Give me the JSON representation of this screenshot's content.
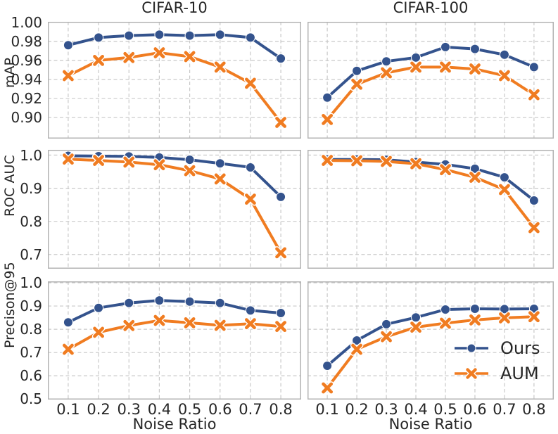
{
  "figure": {
    "titles": [
      "CIFAR-10",
      "CIFAR-100"
    ],
    "row_labels": [
      "mAP",
      "ROC AUC",
      "Precison@95"
    ],
    "xlabel": "Noise Ratio",
    "x_tick_labels": [
      "0.1",
      "0.2",
      "0.3",
      "0.4",
      "0.5",
      "0.6",
      "0.7",
      "0.8"
    ],
    "legend": {
      "items": [
        {
          "label": "Ours",
          "marker": "circle-marker-icon",
          "color": "#34538D"
        },
        {
          "label": "AUM",
          "marker": "x-marker-icon",
          "color": "#F07C21"
        }
      ]
    },
    "colors": {
      "ours_blue": "#34538D",
      "aum_orange": "#F07C21",
      "gridline": "#C9C9C9",
      "plot_border": "#B3B3B3",
      "text": "#262626"
    }
  },
  "chart_data": [
    {
      "type": "line",
      "dataset": "CIFAR-10",
      "metric": "mAP",
      "x": [
        0.1,
        0.2,
        0.3,
        0.4,
        0.5,
        0.6,
        0.7,
        0.8
      ],
      "xlim": [
        0.033,
        0.867
      ],
      "ylim": [
        0.878,
        1.0005
      ],
      "yticks": [
        1.0,
        0.98,
        0.96,
        0.94,
        0.92,
        0.9
      ],
      "ytick_labels": [
        "1.00",
        "0.98",
        "0.96",
        "0.94",
        "0.92",
        "0.90"
      ],
      "grid": true,
      "legend": false,
      "series": [
        {
          "name": "Ours",
          "color": "#34538D",
          "marker": "circle",
          "values": [
            0.976,
            0.984,
            0.986,
            0.987,
            0.986,
            0.987,
            0.984,
            0.962
          ]
        },
        {
          "name": "AUM",
          "color": "#F07C21",
          "marker": "x",
          "values": [
            0.944,
            0.96,
            0.963,
            0.968,
            0.964,
            0.953,
            0.936,
            0.895
          ]
        }
      ]
    },
    {
      "type": "line",
      "dataset": "CIFAR-100",
      "metric": "mAP",
      "x": [
        0.1,
        0.2,
        0.3,
        0.4,
        0.5,
        0.6,
        0.7,
        0.8
      ],
      "xlim": [
        0.033,
        0.867
      ],
      "ylim": [
        0.878,
        1.0005
      ],
      "yticks": [
        1.0,
        0.98,
        0.96,
        0.94,
        0.92,
        0.9
      ],
      "ytick_labels": [],
      "grid": true,
      "legend": false,
      "series": [
        {
          "name": "Ours",
          "color": "#34538D",
          "marker": "circle",
          "values": [
            0.921,
            0.949,
            0.959,
            0.963,
            0.974,
            0.972,
            0.966,
            0.953
          ]
        },
        {
          "name": "AUM",
          "color": "#F07C21",
          "marker": "x",
          "values": [
            0.898,
            0.935,
            0.947,
            0.953,
            0.953,
            0.951,
            0.944,
            0.924
          ]
        }
      ]
    },
    {
      "type": "line",
      "dataset": "CIFAR-10",
      "metric": "ROC AUC",
      "x": [
        0.1,
        0.2,
        0.3,
        0.4,
        0.5,
        0.6,
        0.7,
        0.8
      ],
      "xlim": [
        0.033,
        0.867
      ],
      "ylim": [
        0.657,
        1.016
      ],
      "yticks": [
        1.0,
        0.9,
        0.8,
        0.7
      ],
      "ytick_labels": [
        "1.0",
        "0.9",
        "0.8",
        "0.7"
      ],
      "grid": true,
      "legend": false,
      "series": [
        {
          "name": "Ours",
          "color": "#34538D",
          "marker": "circle",
          "values": [
            0.998,
            0.997,
            0.996,
            0.993,
            0.986,
            0.975,
            0.963,
            0.874
          ]
        },
        {
          "name": "AUM",
          "color": "#F07C21",
          "marker": "x",
          "values": [
            0.988,
            0.984,
            0.979,
            0.971,
            0.953,
            0.928,
            0.867,
            0.705
          ]
        }
      ]
    },
    {
      "type": "line",
      "dataset": "CIFAR-100",
      "metric": "ROC AUC",
      "x": [
        0.1,
        0.2,
        0.3,
        0.4,
        0.5,
        0.6,
        0.7,
        0.8
      ],
      "xlim": [
        0.033,
        0.867
      ],
      "ylim": [
        0.657,
        1.016
      ],
      "yticks": [
        1.0,
        0.9,
        0.8,
        0.7
      ],
      "ytick_labels": [],
      "grid": true,
      "legend": false,
      "series": [
        {
          "name": "Ours",
          "color": "#34538D",
          "marker": "circle",
          "values": [
            0.987,
            0.987,
            0.986,
            0.979,
            0.972,
            0.959,
            0.933,
            0.863
          ]
        },
        {
          "name": "AUM",
          "color": "#F07C21",
          "marker": "x",
          "values": [
            0.984,
            0.983,
            0.981,
            0.974,
            0.956,
            0.933,
            0.896,
            0.781
          ]
        }
      ]
    },
    {
      "type": "line",
      "dataset": "CIFAR-10",
      "metric": "Precison@95",
      "x": [
        0.1,
        0.2,
        0.3,
        0.4,
        0.5,
        0.6,
        0.7,
        0.8
      ],
      "xlim": [
        0.033,
        0.867
      ],
      "ylim": [
        0.498,
        1.006
      ],
      "yticks": [
        1.0,
        0.9,
        0.8,
        0.7,
        0.6,
        0.5
      ],
      "ytick_labels": [
        "1.0",
        "0.9",
        "0.8",
        "0.7",
        "0.6",
        "0.5"
      ],
      "grid": true,
      "legend": false,
      "series": [
        {
          "name": "Ours",
          "color": "#34538D",
          "marker": "circle",
          "values": [
            0.83,
            0.892,
            0.913,
            0.924,
            0.919,
            0.913,
            0.881,
            0.87
          ]
        },
        {
          "name": "AUM",
          "color": "#F07C21",
          "marker": "x",
          "values": [
            0.714,
            0.787,
            0.816,
            0.838,
            0.828,
            0.817,
            0.824,
            0.812
          ]
        }
      ]
    },
    {
      "type": "line",
      "dataset": "CIFAR-100",
      "metric": "Precison@95",
      "x": [
        0.1,
        0.2,
        0.3,
        0.4,
        0.5,
        0.6,
        0.7,
        0.8
      ],
      "xlim": [
        0.033,
        0.867
      ],
      "ylim": [
        0.498,
        1.006
      ],
      "yticks": [
        1.0,
        0.9,
        0.8,
        0.7,
        0.6,
        0.5
      ],
      "ytick_labels": [],
      "grid": true,
      "legend": true,
      "legend_position": "lower right",
      "series": [
        {
          "name": "Ours",
          "color": "#34538D",
          "marker": "circle",
          "values": [
            0.643,
            0.752,
            0.822,
            0.851,
            0.885,
            0.888,
            0.887,
            0.888
          ]
        },
        {
          "name": "AUM",
          "color": "#F07C21",
          "marker": "x",
          "values": [
            0.548,
            0.714,
            0.768,
            0.809,
            0.826,
            0.84,
            0.849,
            0.854
          ]
        }
      ]
    }
  ]
}
